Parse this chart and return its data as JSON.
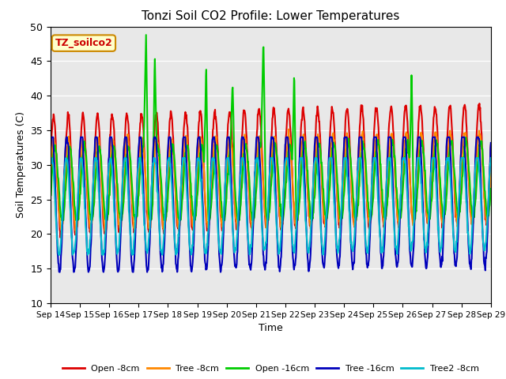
{
  "title": "Tonzi Soil CO2 Profile: Lower Temperatures",
  "xlabel": "Time",
  "ylabel": "Soil Temperatures (C)",
  "ylim": [
    10,
    50
  ],
  "yticks": [
    10,
    15,
    20,
    25,
    30,
    35,
    40,
    45,
    50
  ],
  "plot_bg_color": "#e8e8e8",
  "fig_bg_color": "#ffffff",
  "annotation_text": "TZ_soilco2",
  "annotation_box_color": "#ffffcc",
  "annotation_text_color": "#cc0000",
  "annotation_border_color": "#cc8800",
  "series": {
    "Open -8cm": {
      "color": "#dd0000"
    },
    "Tree -8cm": {
      "color": "#ff8800"
    },
    "Open -16cm": {
      "color": "#00cc00"
    },
    "Tree -16cm": {
      "color": "#0000bb"
    },
    "Tree2 -8cm": {
      "color": "#00bbcc"
    }
  },
  "x_tick_labels": [
    "Sep 14",
    "Sep 15",
    "Sep 16",
    "Sep 17",
    "Sep 18",
    "Sep 19",
    "Sep 20",
    "Sep 21",
    "Sep 22",
    "Sep 23",
    "Sep 24",
    "Sep 25",
    "Sep 26",
    "Sep 27",
    "Sep 28",
    "Sep 29"
  ],
  "num_days": 15,
  "cycles_per_day": 2,
  "points_per_cycle": 40
}
